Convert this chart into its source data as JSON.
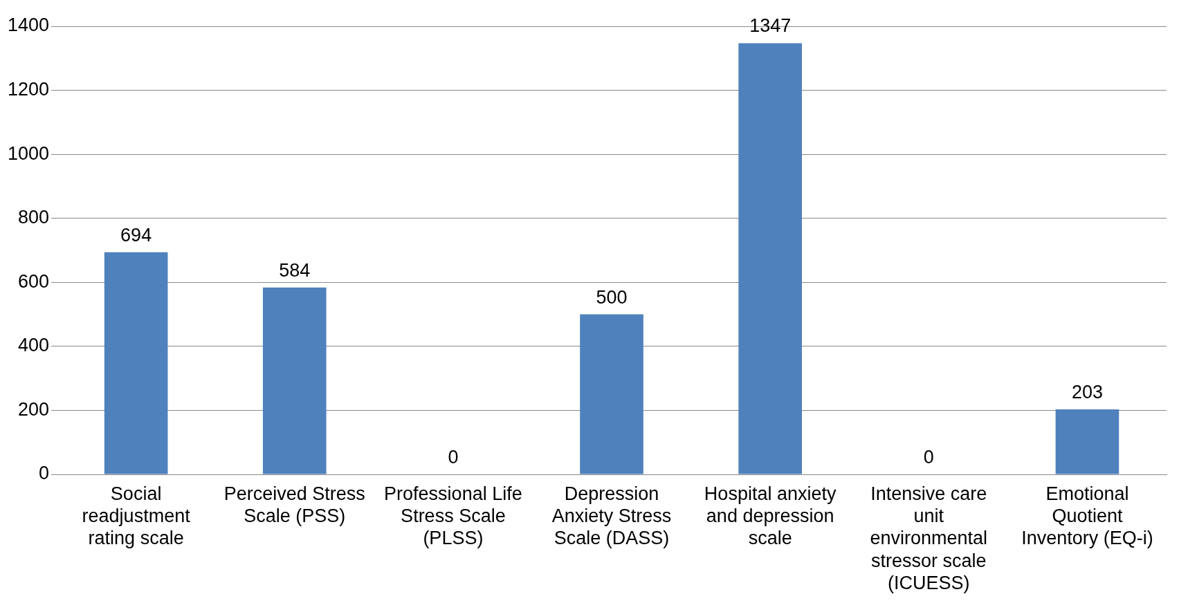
{
  "chart_data": {
    "type": "bar",
    "categories": [
      "Social readjustment rating scale",
      "Perceived Stress Scale (PSS)",
      "Professional Life Stress Scale (PLSS)",
      "Depression Anxiety Stress Scale (DASS)",
      "Hospital anxiety and depression scale",
      "Intensive care unit environmental stressor scale (ICUESS)",
      "Emotional Quotient Inventory (EQ-i)"
    ],
    "values": [
      694,
      584,
      0,
      500,
      1347,
      0,
      203
    ],
    "color": "#4f81bd",
    "ylim": [
      0,
      1400
    ],
    "yticks": [
      0,
      200,
      400,
      600,
      800,
      1000,
      1200,
      1400
    ],
    "grid": "y",
    "data_labels": true
  }
}
